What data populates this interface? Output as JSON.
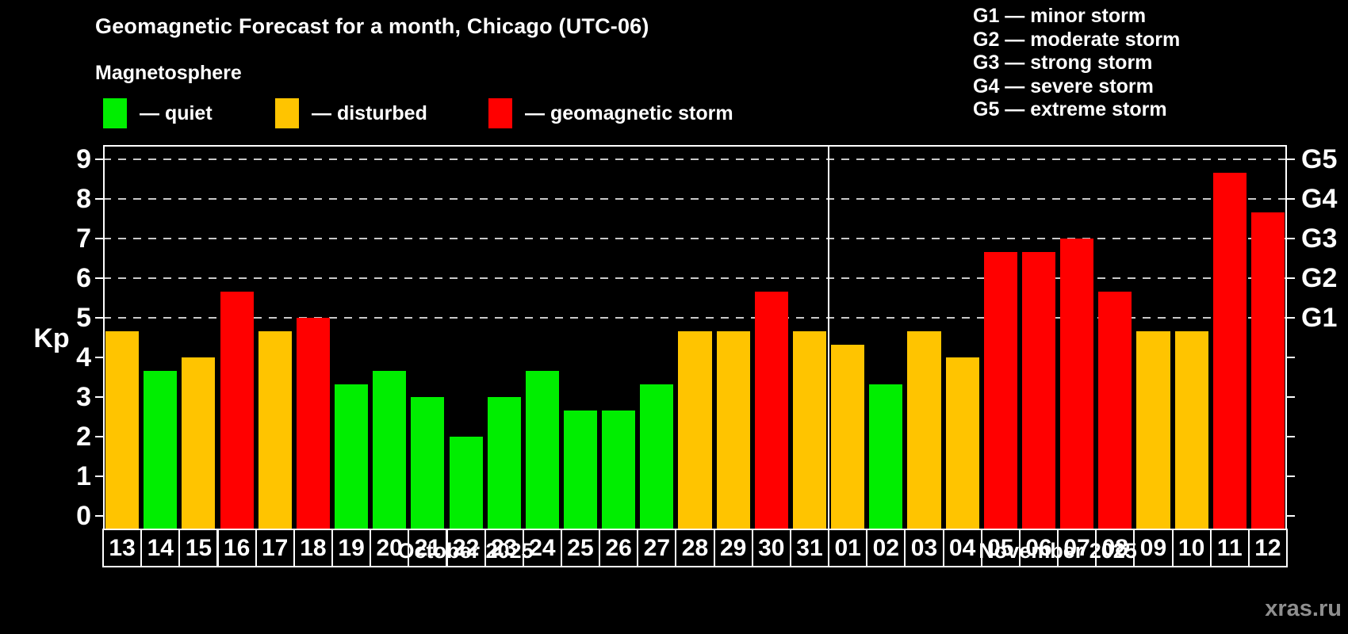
{
  "header": {
    "title": "Geomagnetic Forecast for a month, Chicago (UTC-06)",
    "subtitle": "Magnetosphere"
  },
  "magnetosphere_legend": [
    {
      "label": "— quiet",
      "status": "quiet",
      "color": "#00ee00"
    },
    {
      "label": "— disturbed",
      "status": "disturbed",
      "color": "#ffc400"
    },
    {
      "label": "— geomagnetic storm",
      "status": "storm",
      "color": "#ff0000"
    }
  ],
  "g_scale_legend": [
    {
      "line": "G1 — minor storm"
    },
    {
      "line": "G2 — moderate storm"
    },
    {
      "line": "G3 — strong storm"
    },
    {
      "line": "G4 — severe storm"
    },
    {
      "line": "G5 — extreme storm"
    }
  ],
  "watermark": "xras.ru",
  "chart_data": {
    "type": "bar",
    "title": "Geomagnetic Forecast for a month, Chicago (UTC-06)",
    "ylabel": "Kp",
    "ylim": [
      0,
      9
    ],
    "yticks": [
      0,
      1,
      2,
      3,
      4,
      5,
      6,
      7,
      8,
      9
    ],
    "gridlines_at_kp": [
      5,
      6,
      7,
      8,
      9
    ],
    "right_axis_labels": [
      {
        "kp": 5,
        "label": "G1"
      },
      {
        "kp": 6,
        "label": "G2"
      },
      {
        "kp": 7,
        "label": "G3"
      },
      {
        "kp": 8,
        "label": "G4"
      },
      {
        "kp": 9,
        "label": "G5"
      }
    ],
    "status_colors": {
      "quiet": "#00ee00",
      "disturbed": "#ffc400",
      "storm": "#ff0000"
    },
    "months": [
      {
        "label": "October 2025",
        "days": [
          {
            "day": "13",
            "kp": 4.67,
            "status": "disturbed"
          },
          {
            "day": "14",
            "kp": 3.67,
            "status": "quiet"
          },
          {
            "day": "15",
            "kp": 4.0,
            "status": "disturbed"
          },
          {
            "day": "16",
            "kp": 5.67,
            "status": "storm"
          },
          {
            "day": "17",
            "kp": 4.67,
            "status": "disturbed"
          },
          {
            "day": "18",
            "kp": 5.0,
            "status": "storm"
          },
          {
            "day": "19",
            "kp": 3.33,
            "status": "quiet"
          },
          {
            "day": "20",
            "kp": 3.67,
            "status": "quiet"
          },
          {
            "day": "21",
            "kp": 3.0,
            "status": "quiet"
          },
          {
            "day": "22",
            "kp": 2.0,
            "status": "quiet"
          },
          {
            "day": "23",
            "kp": 3.0,
            "status": "quiet"
          },
          {
            "day": "24",
            "kp": 3.67,
            "status": "quiet"
          },
          {
            "day": "25",
            "kp": 2.67,
            "status": "quiet"
          },
          {
            "day": "26",
            "kp": 2.67,
            "status": "quiet"
          },
          {
            "day": "27",
            "kp": 3.33,
            "status": "quiet"
          },
          {
            "day": "28",
            "kp": 4.67,
            "status": "disturbed"
          },
          {
            "day": "29",
            "kp": 4.67,
            "status": "disturbed"
          },
          {
            "day": "30",
            "kp": 5.67,
            "status": "storm"
          },
          {
            "day": "31",
            "kp": 4.67,
            "status": "disturbed"
          }
        ]
      },
      {
        "label": "November 2025",
        "days": [
          {
            "day": "01",
            "kp": 4.33,
            "status": "disturbed"
          },
          {
            "day": "02",
            "kp": 3.33,
            "status": "quiet"
          },
          {
            "day": "03",
            "kp": 4.67,
            "status": "disturbed"
          },
          {
            "day": "04",
            "kp": 4.0,
            "status": "disturbed"
          },
          {
            "day": "05",
            "kp": 6.67,
            "status": "storm"
          },
          {
            "day": "06",
            "kp": 6.67,
            "status": "storm"
          },
          {
            "day": "07",
            "kp": 7.0,
            "status": "storm"
          },
          {
            "day": "08",
            "kp": 5.67,
            "status": "storm"
          },
          {
            "day": "09",
            "kp": 4.67,
            "status": "disturbed"
          },
          {
            "day": "10",
            "kp": 4.67,
            "status": "disturbed"
          },
          {
            "day": "11",
            "kp": 8.67,
            "status": "storm"
          },
          {
            "day": "12",
            "kp": 7.67,
            "status": "storm"
          }
        ]
      }
    ]
  }
}
